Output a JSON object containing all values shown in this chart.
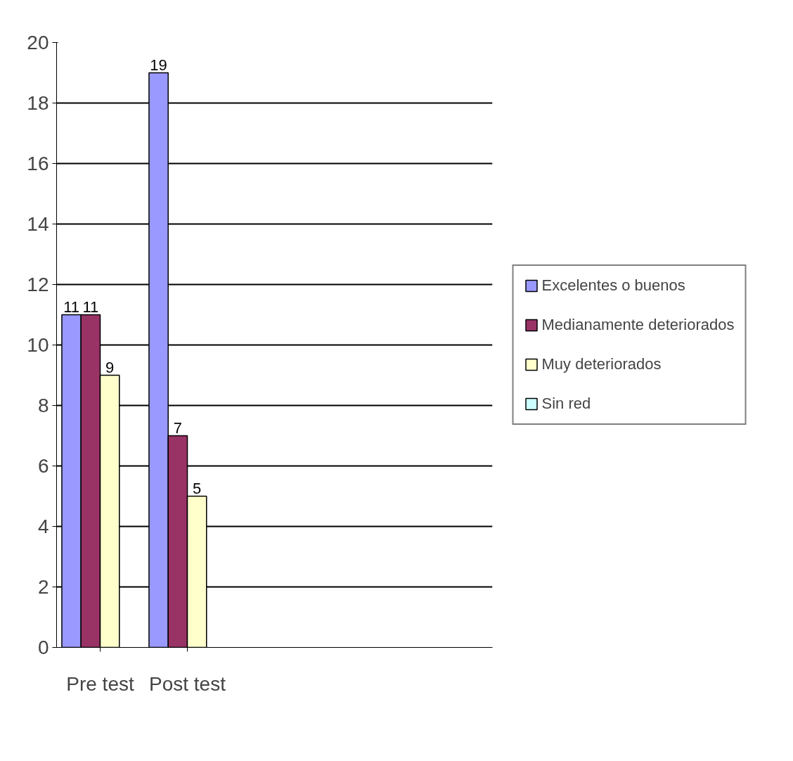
{
  "chart_data": {
    "type": "bar",
    "categories": [
      "Pre test",
      "Post test",
      null,
      null,
      null
    ],
    "series": [
      {
        "name": "Excelentes o buenos",
        "color": "#9999ff",
        "values": [
          11,
          19,
          null,
          null,
          null
        ]
      },
      {
        "name": "Medianamente deteriorados",
        "color": "#993366",
        "values": [
          11,
          7,
          null,
          null,
          null
        ]
      },
      {
        "name": "Muy deteriorados",
        "color": "#ffffcc",
        "values": [
          9,
          5,
          null,
          null,
          null
        ]
      },
      {
        "name": "Sin red",
        "color": "#ccffff",
        "values": [
          null,
          null,
          null,
          null,
          null
        ]
      }
    ],
    "ylim": [
      0,
      20
    ],
    "yticks": [
      0,
      2,
      4,
      6,
      8,
      10,
      12,
      14,
      16,
      18,
      20
    ],
    "grid": "y",
    "legend": "right",
    "data_labels": true
  }
}
